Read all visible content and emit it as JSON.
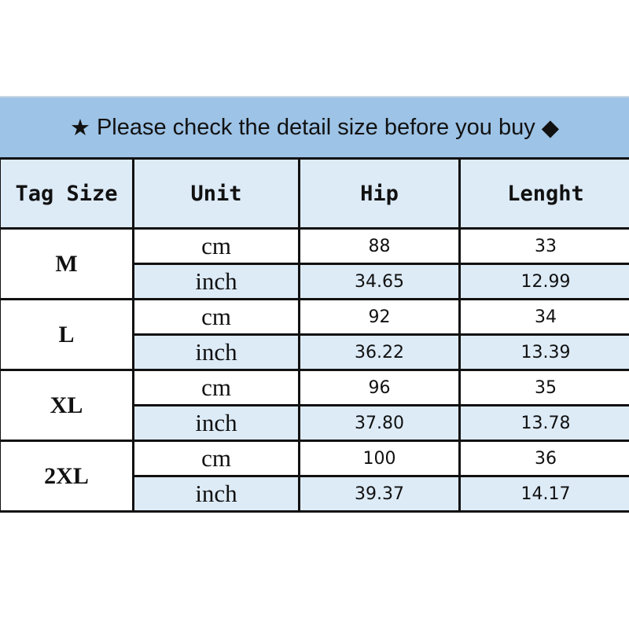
{
  "banner": {
    "star_icon": "★",
    "text": "Please check the detail size before you buy",
    "diamond_icon": "◆"
  },
  "headers": [
    "Tag Size",
    "Unit",
    "Hip",
    "Lenght"
  ],
  "rows": [
    {
      "size": "M",
      "cm": {
        "unit": "cm",
        "hip": "88",
        "length": "33"
      },
      "inch": {
        "unit": "inch",
        "hip": "34.65",
        "length": "12.99"
      }
    },
    {
      "size": "L",
      "cm": {
        "unit": "cm",
        "hip": "92",
        "length": "34"
      },
      "inch": {
        "unit": "inch",
        "hip": "36.22",
        "length": "13.39"
      }
    },
    {
      "size": "XL",
      "cm": {
        "unit": "cm",
        "hip": "96",
        "length": "35"
      },
      "inch": {
        "unit": "inch",
        "hip": "37.80",
        "length": "13.78"
      }
    },
    {
      "size": "2XL",
      "cm": {
        "unit": "cm",
        "hip": "100",
        "length": "36"
      },
      "inch": {
        "unit": "inch",
        "hip": "39.37",
        "length": "14.17"
      }
    }
  ],
  "colors": {
    "banner": "#9dc3e6",
    "header": "#ddebf7",
    "alt_row": "#ddebf7"
  }
}
